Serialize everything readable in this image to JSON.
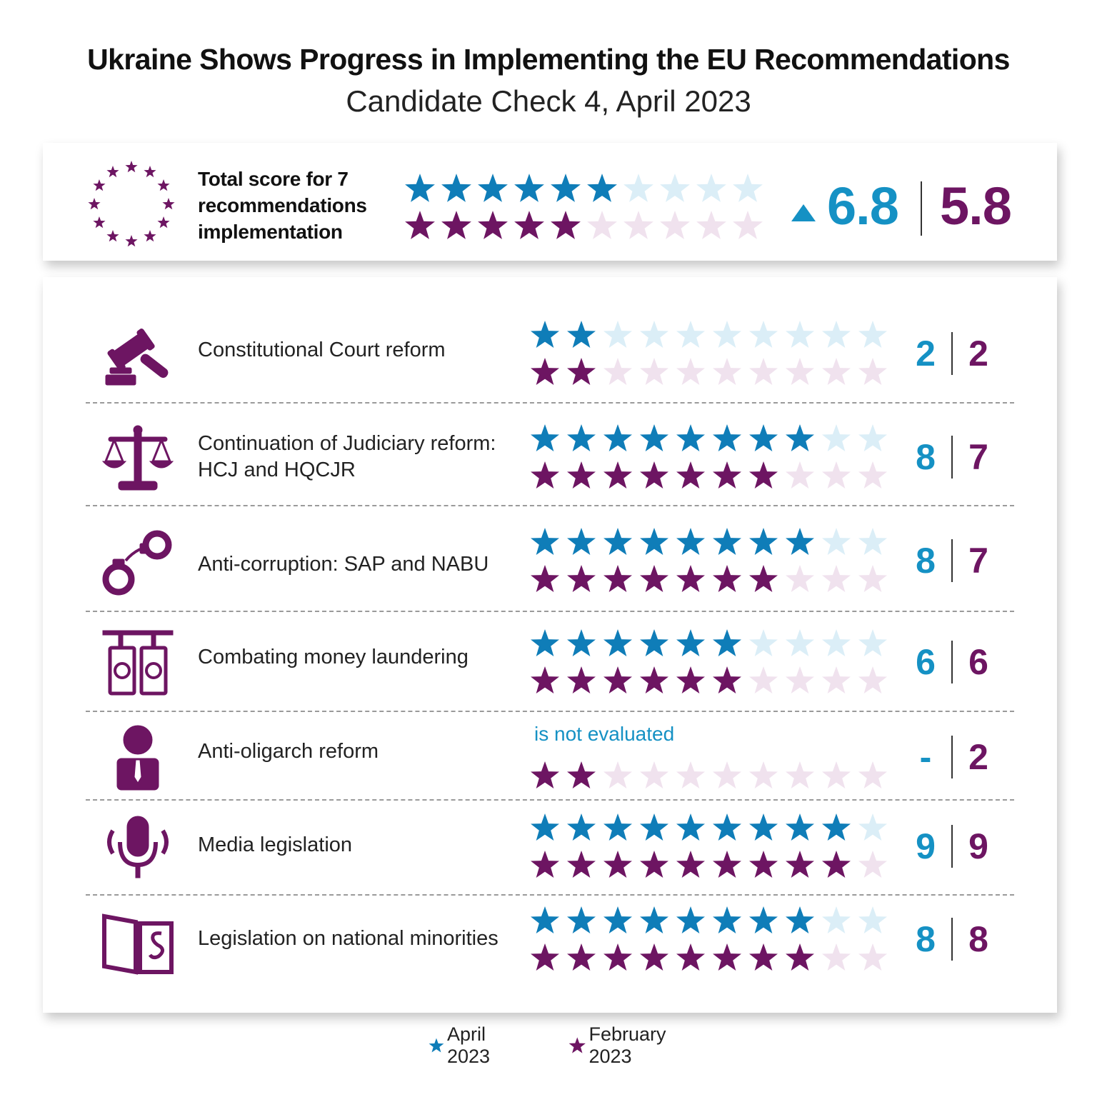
{
  "title": "Ukraine Shows Progress in Implementing the EU Recommendations",
  "subtitle": "Candidate Check 4, April 2023",
  "colors": {
    "april": "#1591c4",
    "april_star": "#0f7db8",
    "april_empty": "#dbeef7",
    "february": "#6d1562",
    "february_star": "#6d1562",
    "february_empty": "#f0e2ee"
  },
  "total": {
    "label": "Total score for 7 recommendations implementation",
    "icon": "eu-stars-icon",
    "april": "6.8",
    "february": "5.8",
    "change_icon": "triangle-up-icon"
  },
  "legend": {
    "april_label": "April 2023",
    "february_label": "February 2023"
  },
  "chart_data": {
    "type": "table",
    "title": "Ukraine Shows Progress in Implementing the EU Recommendations",
    "subtitle": "Candidate Check 4, April 2023",
    "scale_max": 10,
    "total": {
      "april": 6.8,
      "february": 5.8
    },
    "series": [
      {
        "name": "April 2023",
        "values": [
          2,
          8,
          8,
          6,
          null,
          9,
          8
        ]
      },
      {
        "name": "February 2023",
        "values": [
          2,
          7,
          7,
          6,
          2,
          9,
          8
        ]
      }
    ],
    "rows": [
      {
        "label": "Constitutional Court reform",
        "icon": "gavel-icon",
        "april": 2,
        "february": 2,
        "april_text": "2",
        "february_text": "2"
      },
      {
        "label": "Continuation of Judiciary reform: HCJ and HQCJR",
        "icon": "scales-icon",
        "april": 8,
        "february": 7,
        "april_text": "8",
        "february_text": "7"
      },
      {
        "label": "Anti-corruption: SAP and NABU",
        "icon": "handcuffs-icon",
        "april": 8,
        "february": 7,
        "april_text": "8",
        "february_text": "7"
      },
      {
        "label": "Combating money laundering",
        "icon": "money-laundering-icon",
        "april": 6,
        "february": 6,
        "april_text": "6",
        "february_text": "6"
      },
      {
        "label": "Anti-oligarch reform",
        "icon": "oligarch-icon",
        "april": null,
        "february": 2,
        "april_text": "-",
        "february_text": "2",
        "april_note": "is not evaluated"
      },
      {
        "label": "Media legislation",
        "icon": "microphone-icon",
        "april": 9,
        "february": 9,
        "april_text": "9",
        "february_text": "9"
      },
      {
        "label": "Legislation on national minorities",
        "icon": "law-book-icon",
        "april": 8,
        "february": 8,
        "april_text": "8",
        "february_text": "8"
      }
    ]
  }
}
